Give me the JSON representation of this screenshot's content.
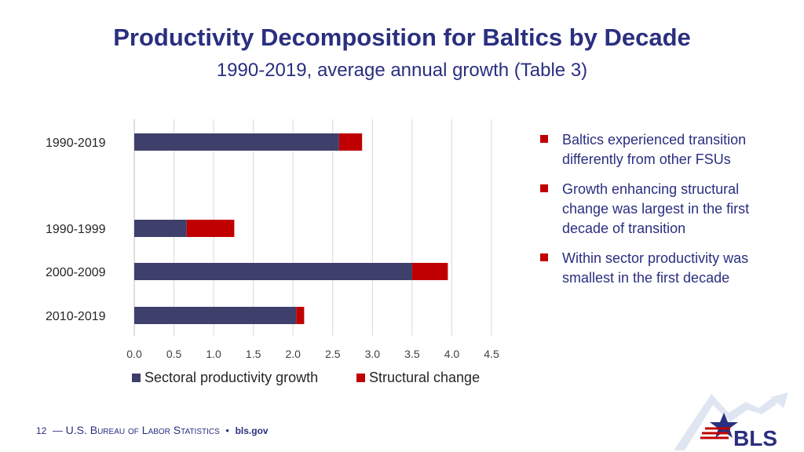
{
  "header": {
    "title": "Productivity Decomposition for Baltics by Decade",
    "subtitle": "1990-2019, average annual growth (Table 3)"
  },
  "chart_data": {
    "type": "bar",
    "orientation": "horizontal",
    "stacked": true,
    "categories": [
      "1990-2019",
      "",
      "1990-1999",
      "2000-2009",
      "2010-2019"
    ],
    "series": [
      {
        "name": "Sectoral productivity growth",
        "color": "#3f3f6b",
        "values": [
          2.58,
          null,
          0.66,
          3.5,
          2.04
        ]
      },
      {
        "name": "Structural change",
        "color": "#c00000",
        "values": [
          0.29,
          null,
          0.6,
          0.45,
          0.1
        ]
      }
    ],
    "xlim": [
      0,
      4.5
    ],
    "xticks": [
      "0.0",
      "0.5",
      "1.0",
      "1.5",
      "2.0",
      "2.5",
      "3.0",
      "3.5",
      "4.0",
      "4.5"
    ],
    "grid": true,
    "legend": "bottom"
  },
  "bullets": [
    "Baltics experienced transition differently from other FSUs",
    "Growth enhancing structural change was largest in the first decade of transition",
    "Within sector productivity was smallest in the first decade"
  ],
  "footer": {
    "page_number": "12",
    "dash": "—",
    "agency_prefix": "U.S. ",
    "agency_b": "B",
    "agency_ureau": "ureau",
    "agency_of": " of ",
    "agency_l": "L",
    "agency_abor": "abor",
    "agency_s": " S",
    "agency_tatistics": "tatistics",
    "separator": "•",
    "site": "bls.gov"
  },
  "logo": {
    "text": "BLS",
    "primary_color": "#2a2f7f",
    "accent_color": "#c00000",
    "swoosh_color": "#dfe6f2"
  }
}
